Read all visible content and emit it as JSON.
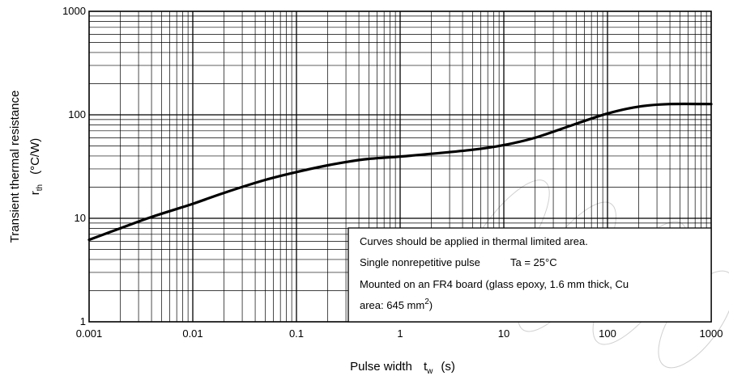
{
  "chart_data": {
    "type": "line",
    "xscale": "log",
    "yscale": "log",
    "xlim": [
      0.001,
      1000
    ],
    "ylim": [
      1,
      1000
    ],
    "grid": true,
    "x_tick_labels": [
      "0.001",
      "0.01",
      "0.1",
      "1",
      "10",
      "100",
      "1000"
    ],
    "y_tick_labels": [
      "1",
      "10",
      "100",
      "1000"
    ],
    "xlabel": {
      "main": "Pulse width",
      "symbol": "t",
      "sub": "w",
      "unit": "(s)"
    },
    "ylabel": {
      "line1": "Transient thermal resistance",
      "symbol": "r",
      "sub": "th",
      "unit": "(°C/W)"
    },
    "series": [
      {
        "x": [
          0.001,
          0.002,
          0.004,
          0.01,
          0.02,
          0.05,
          0.1,
          0.2,
          0.3,
          0.5,
          1,
          2,
          5,
          10,
          20,
          50,
          100,
          200,
          400,
          1000
        ],
        "y": [
          6.2,
          8.0,
          10.3,
          13.8,
          17.6,
          23.5,
          28.0,
          32.5,
          35.0,
          37.5,
          39.5,
          42.0,
          46.0,
          51.0,
          60.0,
          82.0,
          103.0,
          120.0,
          127.0,
          127.0
        ]
      }
    ],
    "annotation": {
      "line1": "Curves should be applied in thermal limited area.",
      "line2a": "Single nonrepetitive pulse",
      "line2b": "Ta = 25°C",
      "line3": "Mounted on an FR4 board (glass epoxy, 1.6 mm thick, Cu",
      "line4": "area: 645 mm",
      "line4_sup": "2",
      "line4_end": ")"
    }
  }
}
